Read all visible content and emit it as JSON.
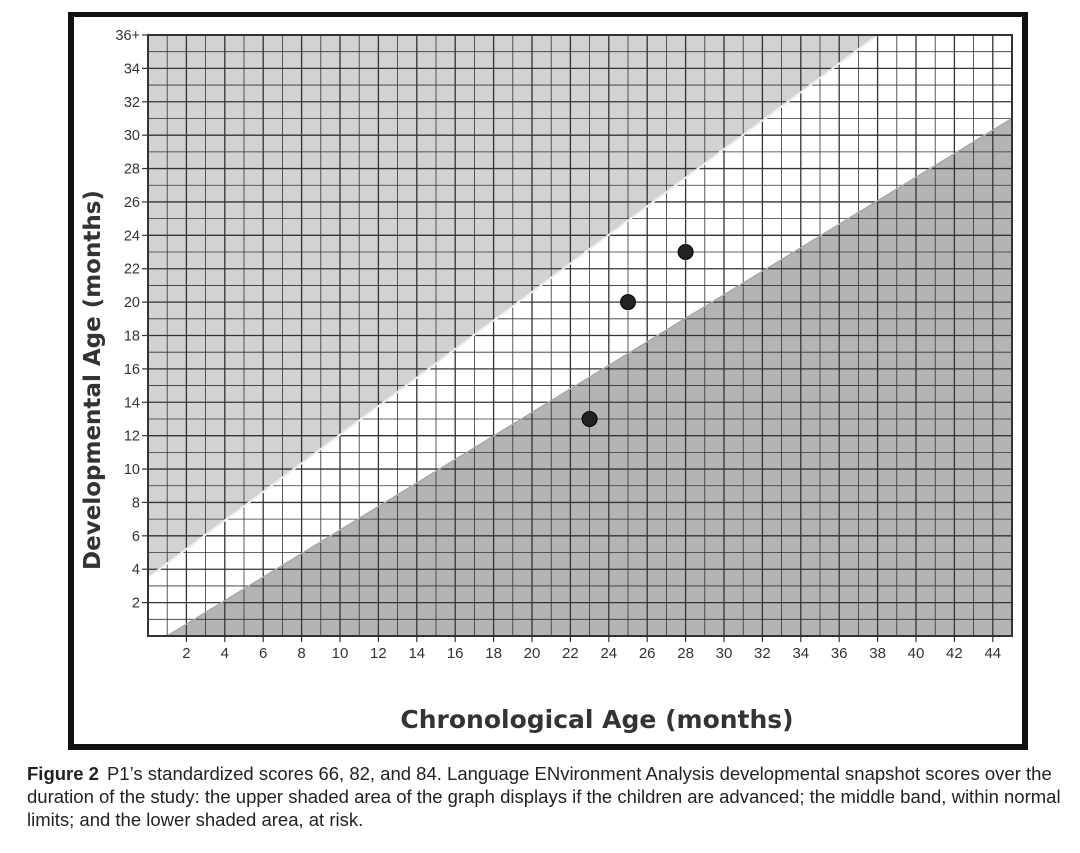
{
  "chart_data": {
    "type": "scatter",
    "title": "",
    "xlabel": "Chronological Age (months)",
    "ylabel": "Developmental Age (months)",
    "xlim": [
      0,
      45
    ],
    "ylim": [
      0,
      36
    ],
    "x_ticks": [
      "2",
      "4",
      "6",
      "8",
      "10",
      "12",
      "14",
      "16",
      "18",
      "20",
      "22",
      "24",
      "26",
      "28",
      "30",
      "32",
      "34",
      "36",
      "38",
      "40",
      "42",
      "44"
    ],
    "y_ticks": [
      "2",
      "4",
      "6",
      "8",
      "10",
      "12",
      "14",
      "16",
      "18",
      "20",
      "22",
      "24",
      "26",
      "28",
      "30",
      "32",
      "34",
      "36+"
    ],
    "grid": true,
    "series": [
      {
        "points": [
          {
            "x": 23,
            "y": 13
          },
          {
            "x": 25,
            "y": 20
          },
          {
            "x": 28,
            "y": 23
          }
        ]
      }
    ],
    "regions": [
      {
        "region": "advanced",
        "boundary_line": [
          [
            0,
            3.5
          ],
          [
            38,
            36
          ]
        ],
        "fill": "#d2d2d2"
      },
      {
        "region": "within normal limits",
        "fill": "#ffffff"
      },
      {
        "region": "at risk",
        "boundary_line": [
          [
            1,
            0
          ],
          [
            45,
            31
          ]
        ],
        "fill": "#b4b4b4"
      }
    ],
    "colors": {
      "grid": "#333333",
      "points": "#222222",
      "axis_label": "#333333"
    }
  },
  "caption": {
    "label": "Figure 2",
    "text": "P1’s standardized scores 66, 82, and 84. Language ENvironment Analysis developmental snapshot scores over the duration of the study: the upper shaded area of the graph displays if the children are advanced; the middle band, within normal limits; and the lower shaded area, at risk."
  }
}
